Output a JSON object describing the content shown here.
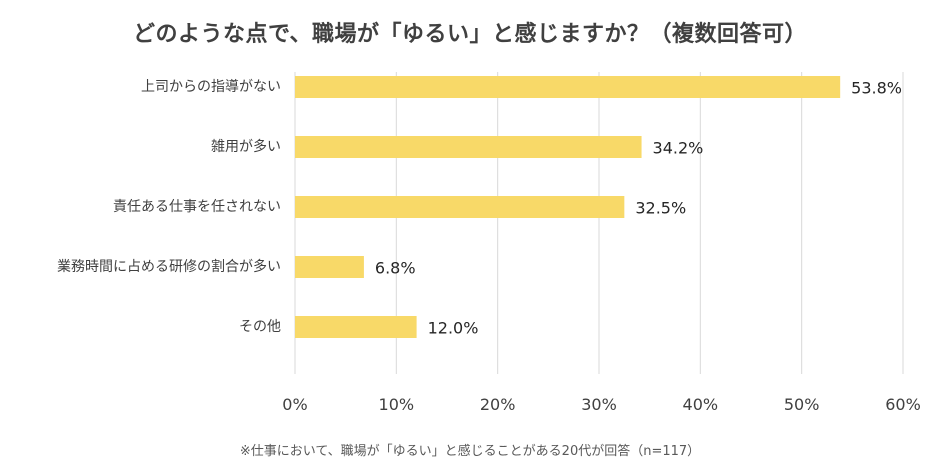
{
  "chart_data": {
    "type": "bar",
    "orientation": "horizontal",
    "title": "どのような点で、職場が「ゆるい」と感じますか？（複数回答可）",
    "categories": [
      "上司からの指導がない",
      "雑用が多い",
      "責任ある仕事を任されない",
      "業務時間に占める研修の割合が多い",
      "その他"
    ],
    "values": [
      53.8,
      34.2,
      32.5,
      6.8,
      12.0
    ],
    "value_labels": [
      "53.8%",
      "34.2%",
      "32.5%",
      "6.8%",
      "12.0%"
    ],
    "xlim": [
      0,
      60
    ],
    "x_ticks": [
      0,
      10,
      20,
      30,
      40,
      50,
      60
    ],
    "x_tick_labels": [
      "0%",
      "10%",
      "20%",
      "30%",
      "40%",
      "50%",
      "60%"
    ],
    "xlabel": "",
    "ylabel": "",
    "grid": "vertical",
    "legend": "none",
    "footnote": "※仕事において、職場が「ゆるい」と感じることがある20代が回答（n=117）",
    "colors": {
      "bar": "#F8D968",
      "grid": "#D9D9D9",
      "title": "#404040",
      "text": "#404040"
    }
  }
}
